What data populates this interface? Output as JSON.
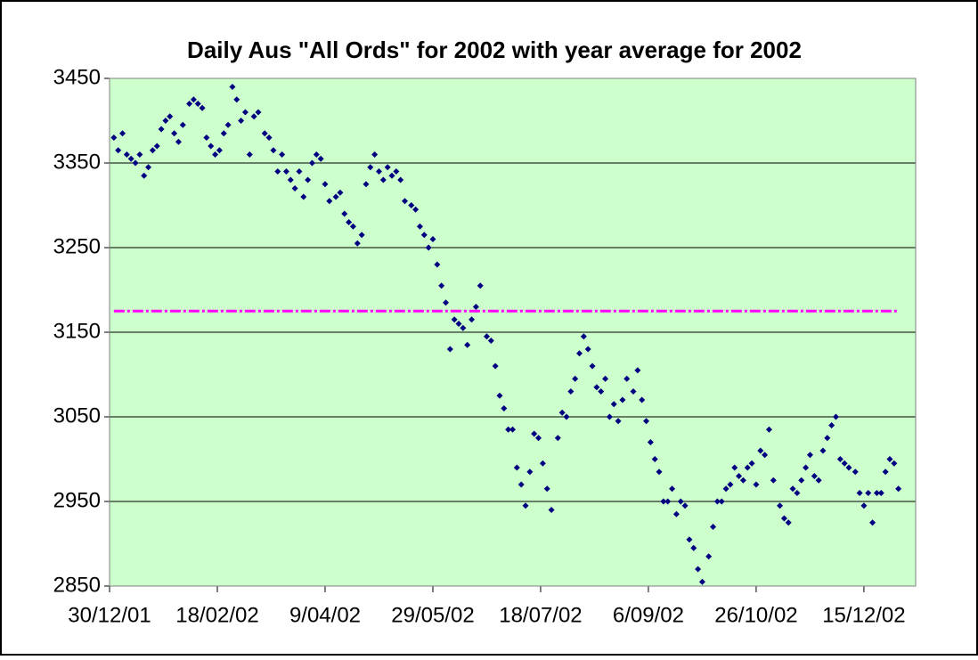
{
  "chart_data": {
    "type": "scatter",
    "title": "Daily Aus \"All Ords\" for 2002 with year average for 2002",
    "xlim": [
      0,
      374
    ],
    "xticks": [
      {
        "value": 0,
        "label": "30/12/01"
      },
      {
        "value": 50,
        "label": "18/02/02"
      },
      {
        "value": 100,
        "label": "9/04/02"
      },
      {
        "value": 150,
        "label": "29/05/02"
      },
      {
        "value": 200,
        "label": "18/07/02"
      },
      {
        "value": 250,
        "label": "6/09/02"
      },
      {
        "value": 300,
        "label": "26/10/02"
      },
      {
        "value": 350,
        "label": "15/12/02"
      }
    ],
    "ylim": [
      2850,
      3450
    ],
    "yticks": [
      2850,
      2950,
      3050,
      3150,
      3250,
      3350,
      3450
    ],
    "grid": true,
    "plot_background": "#ccffcc",
    "series": [
      {
        "color": "#000080",
        "marker": "diamond",
        "x": [
          2,
          4,
          6,
          8,
          10,
          12,
          14,
          16,
          18,
          20,
          22,
          24,
          26,
          28,
          30,
          32,
          34,
          37,
          39,
          41,
          43,
          45,
          47,
          49,
          51,
          53,
          55,
          57,
          59,
          61,
          63,
          65,
          67,
          69,
          72,
          74,
          76,
          78,
          80,
          82,
          84,
          86,
          88,
          90,
          92,
          94,
          96,
          98,
          100,
          102,
          105,
          107,
          109,
          111,
          113,
          115,
          117,
          119,
          121,
          123,
          125,
          127,
          129,
          131,
          133,
          135,
          137,
          140,
          142,
          144,
          146,
          148,
          150,
          152,
          154,
          156,
          158,
          160,
          162,
          164,
          166,
          168,
          170,
          172,
          175,
          177,
          179,
          181,
          183,
          185,
          187,
          189,
          191,
          193,
          195,
          197,
          199,
          201,
          203,
          205,
          208,
          210,
          212,
          214,
          216,
          218,
          220,
          222,
          224,
          226,
          228,
          230,
          232,
          234,
          236,
          238,
          240,
          243,
          245,
          247,
          249,
          251,
          253,
          255,
          257,
          259,
          261,
          263,
          265,
          267,
          269,
          271,
          273,
          275,
          278,
          280,
          282,
          284,
          286,
          288,
          290,
          292,
          294,
          296,
          298,
          300,
          302,
          304,
          306,
          308,
          311,
          313,
          315,
          317,
          319,
          321,
          323,
          325,
          327,
          329,
          331,
          333,
          335,
          337,
          339,
          341,
          343,
          346,
          348,
          350,
          352,
          354,
          356,
          358,
          360,
          362,
          364,
          366
        ],
        "values": [
          3380,
          3365,
          3385,
          3360,
          3355,
          3350,
          3360,
          3335,
          3345,
          3365,
          3370,
          3390,
          3400,
          3405,
          3385,
          3375,
          3395,
          3420,
          3425,
          3420,
          3415,
          3380,
          3370,
          3360,
          3365,
          3385,
          3395,
          3440,
          3425,
          3400,
          3410,
          3360,
          3405,
          3410,
          3385,
          3380,
          3365,
          3340,
          3360,
          3340,
          3330,
          3320,
          3340,
          3310,
          3330,
          3350,
          3360,
          3355,
          3325,
          3305,
          3310,
          3315,
          3290,
          3280,
          3275,
          3255,
          3265,
          3325,
          3345,
          3360,
          3340,
          3330,
          3345,
          3335,
          3340,
          3330,
          3305,
          3300,
          3295,
          3275,
          3265,
          3250,
          3260,
          3230,
          3205,
          3185,
          3130,
          3165,
          3160,
          3155,
          3135,
          3165,
          3180,
          3205,
          3145,
          3140,
          3110,
          3075,
          3060,
          3035,
          3035,
          2990,
          2970,
          2945,
          2985,
          3030,
          3025,
          2995,
          2965,
          2940,
          3025,
          3055,
          3050,
          3080,
          3095,
          3125,
          3145,
          3130,
          3110,
          3085,
          3080,
          3095,
          3050,
          3065,
          3045,
          3070,
          3095,
          3080,
          3105,
          3070,
          3045,
          3020,
          3000,
          2985,
          2950,
          2950,
          2965,
          2935,
          2950,
          2945,
          2905,
          2895,
          2870,
          2855,
          2885,
          2920,
          2950,
          2950,
          2965,
          2970,
          2990,
          2980,
          2975,
          2990,
          2995,
          2970,
          3010,
          3005,
          3035,
          2975,
          2945,
          2930,
          2925,
          2965,
          2960,
          2975,
          2990,
          3005,
          2980,
          2975,
          3010,
          3025,
          3040,
          3050,
          3000,
          2995,
          2990,
          2985,
          2960,
          2945,
          2960,
          2925,
          2960,
          2960,
          2985,
          3000,
          2995,
          2965
        ]
      },
      {
        "color": "#ff00ff",
        "line": "dashed",
        "x": [
          2,
          366
        ],
        "values": [
          3175,
          3175
        ]
      }
    ]
  }
}
